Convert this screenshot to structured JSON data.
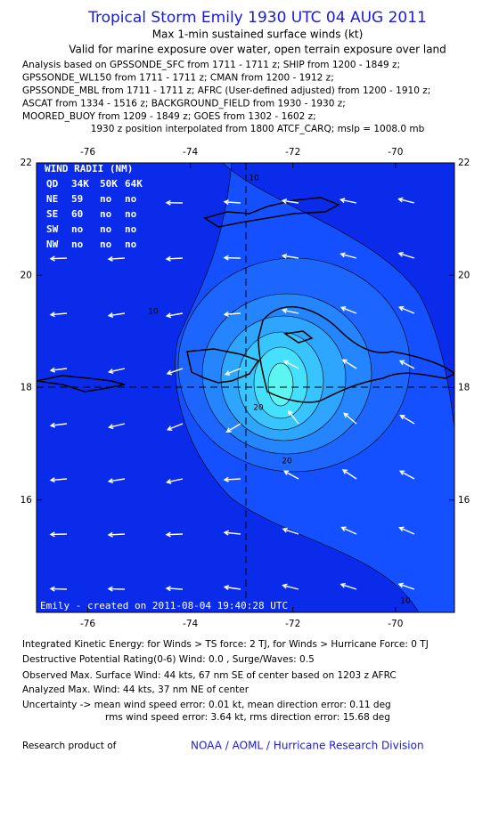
{
  "header": {
    "title": "Tropical Storm Emily 1930 UTC 04 AUG 2011",
    "subtitle": "Max 1-min sustained surface winds (kt)",
    "valid": "Valid for marine exposure over water, open terrain exposure over land",
    "analysis": [
      "Analysis based on GPSSONDE_SFC from 1711 - 1711 z; SHIP from 1200 - 1849 z;",
      "GPSSONDE_WL150 from 1711 - 1711 z; CMAN from 1200 - 1912 z;",
      "GPSSONDE_MBL from 1711 - 1711 z; AFRC (User-defined adjusted) from 1200 - 1910 z;",
      "ASCAT from 1334 - 1516 z; BACKGROUND_FIELD from 1930 - 1930 z;",
      "MOORED_BUOY from 1209 - 1849 z; GOES from 1302 - 1602 z;"
    ],
    "position": "1930 z position interpolated from 1800 ATCF_CARQ; mslp = 1008.0 mb"
  },
  "map": {
    "xlim": [
      -77,
      -68.85
    ],
    "ylim": [
      14,
      22
    ],
    "xticks": [
      -76,
      -74,
      -72,
      -70
    ],
    "yticks": [
      22,
      20,
      18,
      16
    ],
    "contour_labels": [
      "10",
      "10",
      "20",
      "20",
      "10"
    ],
    "wind_radii": {
      "title": "WIND RADII (NM)",
      "columns": [
        "QD",
        "34K",
        "50K",
        "64K"
      ],
      "rows": [
        [
          "NE",
          "59",
          "no",
          "no"
        ],
        [
          "SE",
          "60",
          "no",
          "no"
        ],
        [
          "SW",
          "no",
          "no",
          "no"
        ],
        [
          "NW",
          "no",
          "no",
          "no"
        ]
      ]
    },
    "credit": "Emily - created on 2011-08-04 19:40:28 UTC"
  },
  "footer": {
    "lines": [
      "Integrated Kinetic Energy:  for Winds > TS force: 2 TJ,  for Winds > Hurricane Force: 0 TJ",
      "Destructive Potential Rating(0-6)   Wind: 0.0 , Surge/Waves: 0.5",
      "Observed Max. Surface Wind: 44 kts, 67 nm SE of center based on 1203 z AFRC",
      "Analyzed Max. Wind: 44 kts, 37 nm NE of center",
      "Uncertainty -> mean wind speed error: 0.01 kt,   mean direction error: 0.11 deg",
      "rms wind speed error: 3.64 kt,   rms direction error: 15.68 deg"
    ],
    "product_label": "Research product of",
    "organization": "NOAA / AOML / Hurricane Research Division"
  }
}
